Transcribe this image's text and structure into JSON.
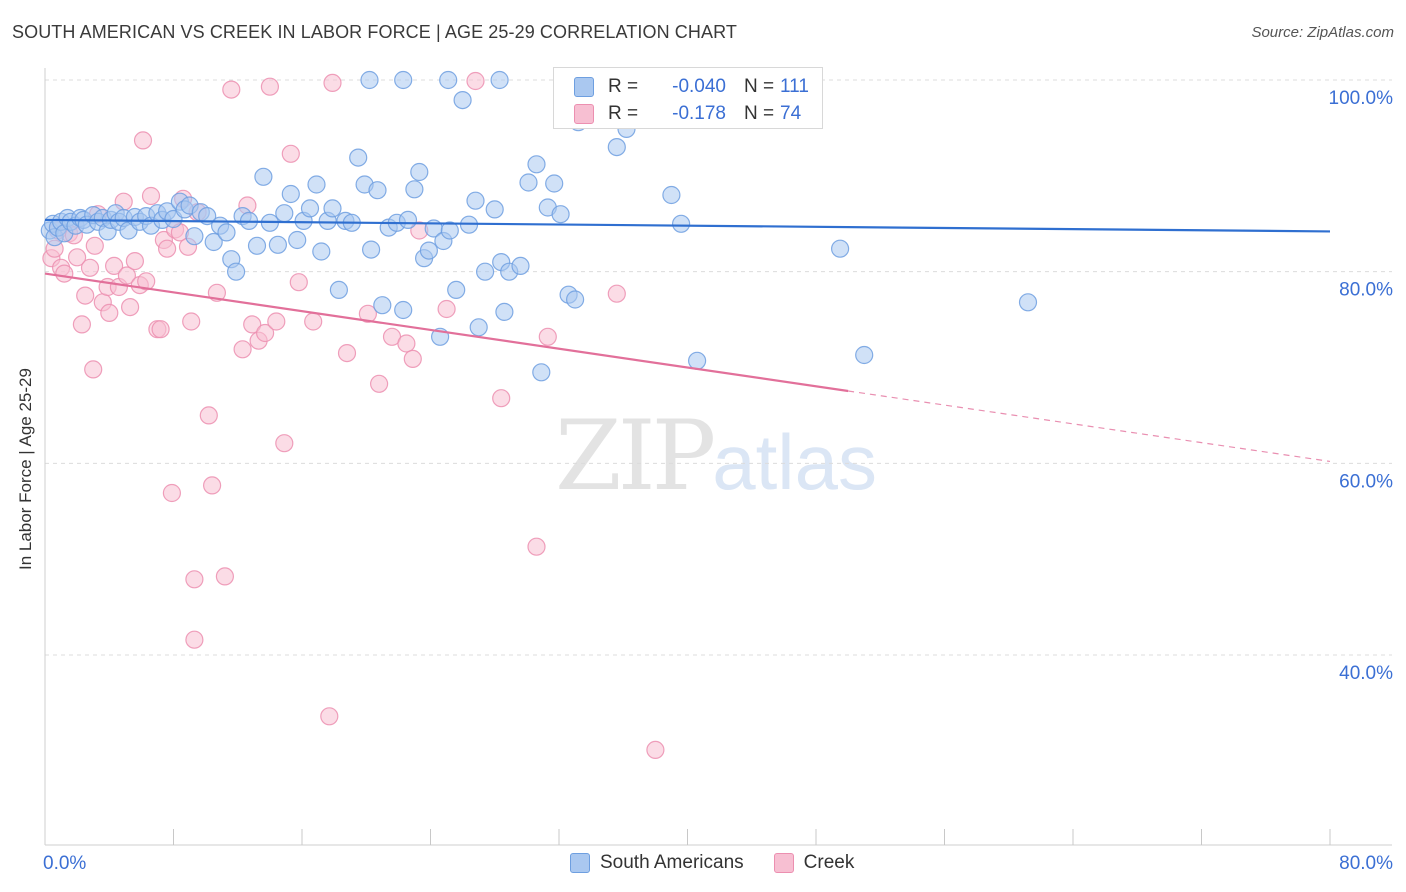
{
  "title": "SOUTH AMERICAN VS CREEK IN LABOR FORCE | AGE 25-29 CORRELATION CHART",
  "source": "Source: ZipAtlas.com",
  "watermark": {
    "zip": "ZIP",
    "atlas": "atlas"
  },
  "legend": {
    "r_label": "R =",
    "n_label": "N =",
    "rows": [
      {
        "name": "South Americans",
        "r": "-0.040",
        "n": "111",
        "fill": "#aac8f0",
        "stroke": "#6e9fe0"
      },
      {
        "name": "Creek",
        "r": "-0.178",
        "n": "74",
        "fill": "#f7bfd2",
        "stroke": "#ec8fb0"
      }
    ]
  },
  "chart_data": {
    "type": "scatter",
    "title": "SOUTH AMERICAN VS CREEK IN LABOR FORCE | AGE 25-29 CORRELATION CHART",
    "xlabel": "",
    "ylabel": "In Labor Force | Age 25-29",
    "xlim": [
      0,
      80
    ],
    "ylim": [
      20,
      100
    ],
    "x_tick_labels": [
      "0.0%",
      "80.0%"
    ],
    "y_ticks": [
      {
        "value": 100,
        "label": "100.0%"
      },
      {
        "value": 80,
        "label": "80.0%"
      },
      {
        "value": 60,
        "label": "60.0%"
      },
      {
        "value": 40,
        "label": "40.0%"
      }
    ],
    "grid": "horizontal dashed",
    "legend_position": "top-center",
    "series": [
      {
        "name": "South Americans",
        "color": "#6e9fe0",
        "fill": "#aac8f0",
        "trend": {
          "x0": 0,
          "y0": 85.4,
          "x1": 80,
          "y1": 84.2
        },
        "points": [
          [
            0.3,
            84.3
          ],
          [
            0.5,
            85
          ],
          [
            0.6,
            83.6
          ],
          [
            0.8,
            84.6
          ],
          [
            1.0,
            85.2
          ],
          [
            1.2,
            84
          ],
          [
            1.4,
            85.6
          ],
          [
            1.6,
            85.2
          ],
          [
            1.9,
            84.8
          ],
          [
            2.2,
            85.6
          ],
          [
            2.4,
            85.4
          ],
          [
            2.6,
            84.9
          ],
          [
            3.0,
            85.9
          ],
          [
            3.3,
            85.2
          ],
          [
            3.6,
            85.6
          ],
          [
            3.9,
            84.2
          ],
          [
            4.1,
            85.4
          ],
          [
            4.4,
            86.1
          ],
          [
            4.6,
            85.2
          ],
          [
            4.9,
            85.6
          ],
          [
            5.2,
            84.3
          ],
          [
            5.6,
            85.7
          ],
          [
            5.9,
            85.2
          ],
          [
            6.3,
            85.8
          ],
          [
            6.6,
            84.8
          ],
          [
            7.0,
            86.1
          ],
          [
            7.3,
            85.4
          ],
          [
            7.6,
            86.3
          ],
          [
            8.0,
            85.5
          ],
          [
            8.4,
            87.3
          ],
          [
            8.7,
            86.5
          ],
          [
            9.0,
            86.9
          ],
          [
            9.3,
            83.7
          ],
          [
            9.7,
            86.2
          ],
          [
            10.1,
            85.8
          ],
          [
            10.5,
            83.1
          ],
          [
            10.9,
            84.8
          ],
          [
            11.3,
            84.1
          ],
          [
            11.6,
            81.3
          ],
          [
            11.9,
            80.0
          ],
          [
            12.3,
            85.8
          ],
          [
            12.7,
            85.3
          ],
          [
            13.2,
            82.7
          ],
          [
            13.6,
            89.9
          ],
          [
            14.0,
            85.1
          ],
          [
            14.5,
            82.8
          ],
          [
            14.9,
            86.1
          ],
          [
            15.3,
            88.1
          ],
          [
            15.7,
            83.3
          ],
          [
            16.1,
            85.3
          ],
          [
            16.5,
            86.6
          ],
          [
            16.9,
            89.1
          ],
          [
            17.2,
            82.1
          ],
          [
            17.6,
            85.3
          ],
          [
            17.9,
            86.6
          ],
          [
            18.3,
            78.1
          ],
          [
            18.7,
            85.3
          ],
          [
            19.1,
            85.1
          ],
          [
            19.5,
            91.9
          ],
          [
            19.9,
            89.1
          ],
          [
            20.3,
            82.3
          ],
          [
            20.7,
            88.5
          ],
          [
            21.0,
            76.5
          ],
          [
            21.4,
            84.6
          ],
          [
            21.9,
            85.1
          ],
          [
            22.3,
            76.0
          ],
          [
            22.6,
            85.4
          ],
          [
            23.0,
            88.6
          ],
          [
            23.3,
            90.4
          ],
          [
            23.6,
            81.4
          ],
          [
            23.9,
            82.2
          ],
          [
            24.2,
            84.5
          ],
          [
            24.6,
            73.2
          ],
          [
            24.8,
            83.2
          ],
          [
            25.2,
            84.3
          ],
          [
            25.6,
            78.1
          ],
          [
            26.0,
            97.9
          ],
          [
            26.4,
            84.9
          ],
          [
            26.8,
            87.4
          ],
          [
            27.0,
            74.2
          ],
          [
            27.4,
            80.0
          ],
          [
            28.0,
            86.5
          ],
          [
            28.4,
            81.0
          ],
          [
            28.6,
            75.8
          ],
          [
            28.9,
            80.0
          ],
          [
            29.6,
            80.6
          ],
          [
            30.1,
            89.3
          ],
          [
            30.6,
            91.2
          ],
          [
            30.9,
            69.5
          ],
          [
            31.3,
            86.7
          ],
          [
            31.7,
            89.2
          ],
          [
            32.1,
            86.0
          ],
          [
            32.6,
            77.6
          ],
          [
            33.0,
            77.1
          ],
          [
            33.2,
            95.6
          ],
          [
            34.8,
            100.0
          ],
          [
            35.6,
            93.0
          ],
          [
            36.2,
            94.9
          ],
          [
            38.5,
            100.0
          ],
          [
            39.0,
            88.0
          ],
          [
            39.6,
            85.0
          ],
          [
            40.1,
            97.6
          ],
          [
            40.6,
            70.7
          ],
          [
            41.0,
            100.0
          ],
          [
            49.5,
            82.4
          ],
          [
            61.2,
            76.8
          ],
          [
            51.0,
            71.3
          ],
          [
            25.1,
            100.0
          ],
          [
            28.3,
            100.0
          ],
          [
            22.3,
            100.0
          ],
          [
            20.2,
            100.0
          ]
        ]
      },
      {
        "name": "Creek",
        "color": "#ec8fb0",
        "fill": "#f7bfd2",
        "trend": {
          "x0": 0,
          "y0": 79.8,
          "x1": 80,
          "y1": 60.2
        },
        "trend_solid_until": 50,
        "points": [
          [
            0.4,
            81.4
          ],
          [
            0.6,
            82.4
          ],
          [
            0.8,
            84.3
          ],
          [
            1.0,
            80.4
          ],
          [
            1.2,
            79.8
          ],
          [
            1.5,
            84.0
          ],
          [
            1.8,
            83.8
          ],
          [
            2.0,
            81.5
          ],
          [
            2.3,
            74.5
          ],
          [
            2.5,
            77.5
          ],
          [
            2.8,
            80.4
          ],
          [
            3.0,
            69.8
          ],
          [
            3.1,
            82.7
          ],
          [
            3.3,
            86.0
          ],
          [
            3.6,
            76.8
          ],
          [
            3.9,
            78.4
          ],
          [
            4.0,
            75.7
          ],
          [
            4.3,
            80.6
          ],
          [
            4.6,
            78.4
          ],
          [
            4.9,
            87.3
          ],
          [
            5.1,
            79.6
          ],
          [
            5.3,
            76.3
          ],
          [
            5.6,
            81.1
          ],
          [
            5.9,
            78.6
          ],
          [
            6.1,
            93.7
          ],
          [
            6.3,
            79.0
          ],
          [
            6.6,
            87.9
          ],
          [
            7.0,
            74.0
          ],
          [
            7.2,
            74.0
          ],
          [
            7.4,
            83.3
          ],
          [
            7.6,
            82.4
          ],
          [
            7.9,
            56.9
          ],
          [
            8.1,
            84.4
          ],
          [
            8.4,
            84.1
          ],
          [
            8.6,
            87.6
          ],
          [
            8.9,
            82.6
          ],
          [
            9.1,
            74.8
          ],
          [
            9.3,
            47.9
          ],
          [
            9.5,
            86.2
          ],
          [
            10.2,
            65.0
          ],
          [
            10.4,
            57.7
          ],
          [
            10.7,
            77.8
          ],
          [
            11.2,
            48.2
          ],
          [
            11.6,
            99.0
          ],
          [
            12.3,
            71.9
          ],
          [
            12.6,
            86.9
          ],
          [
            12.9,
            74.5
          ],
          [
            13.3,
            72.8
          ],
          [
            13.7,
            73.6
          ],
          [
            14.0,
            99.3
          ],
          [
            14.4,
            74.8
          ],
          [
            14.9,
            62.1
          ],
          [
            15.3,
            92.3
          ],
          [
            15.8,
            78.9
          ],
          [
            16.7,
            74.8
          ],
          [
            17.7,
            33.6
          ],
          [
            17.9,
            99.7
          ],
          [
            18.8,
            71.5
          ],
          [
            20.1,
            75.6
          ],
          [
            20.8,
            68.3
          ],
          [
            21.6,
            73.2
          ],
          [
            22.5,
            72.5
          ],
          [
            22.9,
            70.9
          ],
          [
            23.3,
            84.3
          ],
          [
            25.0,
            76.1
          ],
          [
            26.8,
            99.9
          ],
          [
            28.4,
            66.8
          ],
          [
            30.6,
            51.3
          ],
          [
            31.3,
            73.2
          ],
          [
            35.6,
            77.7
          ],
          [
            38.0,
            30.1
          ],
          [
            38.7,
            100.0
          ],
          [
            43.8,
            100.0
          ],
          [
            9.3,
            41.6
          ]
        ]
      }
    ]
  }
}
